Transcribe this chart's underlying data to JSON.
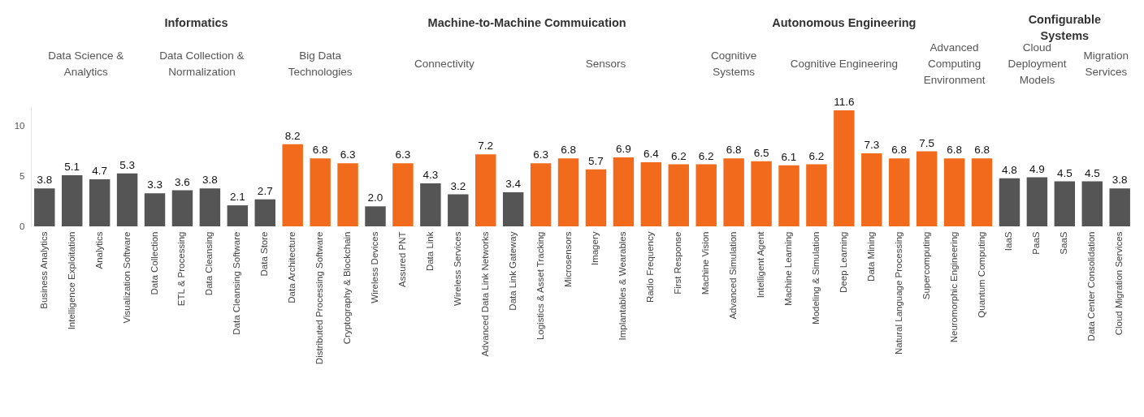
{
  "chart_data": {
    "type": "bar",
    "categories": [
      "Business Analytics",
      "Intelligence Exploitation",
      "Analytics",
      "Visualization Software",
      "Data Collection",
      "ETL & Processing",
      "Data Cleansing",
      "Data Cleansing Software",
      "Data Store",
      "Data Architecture",
      "Distributed Processing Software",
      "Cryptography & Blockchain",
      "Wireless Devices",
      "Assured PNT",
      "Data Link",
      "Wireless Services",
      "Advanced Data Link Networks",
      "Data Link Gateway",
      "Logistics & Asset Tracking",
      "Microsensors",
      "Imagery",
      "Implantables & Wearables",
      "Radio Frequency",
      "First Response",
      "Machine Vision",
      "Advanced Simulation",
      "Intelligent Agent",
      "Machine Learning",
      "Modeling & Simulation",
      "Deep Learning",
      "Data Mining",
      "Natural Language Processing",
      "Supercomputing",
      "Neuromorphic Engineering",
      "Quantum Computing",
      "IaaS",
      "PaaS",
      "SaaS",
      "Data Center Consolidation",
      "Cloud Migration Services"
    ],
    "values": [
      3.8,
      5.1,
      4.7,
      5.3,
      3.3,
      3.6,
      3.8,
      2.1,
      2.7,
      8.2,
      6.8,
      6.3,
      2.0,
      6.3,
      4.3,
      3.2,
      7.2,
      3.4,
      6.3,
      6.8,
      5.7,
      6.9,
      6.4,
      6.2,
      6.2,
      6.8,
      6.5,
      6.1,
      6.2,
      11.6,
      7.3,
      6.8,
      7.5,
      6.8,
      6.8,
      4.8,
      4.9,
      4.5,
      4.5,
      3.8
    ],
    "colors": [
      "#555555",
      "#555555",
      "#555555",
      "#555555",
      "#555555",
      "#555555",
      "#555555",
      "#555555",
      "#555555",
      "#f26b1d",
      "#f26b1d",
      "#f26b1d",
      "#555555",
      "#f26b1d",
      "#555555",
      "#555555",
      "#f26b1d",
      "#555555",
      "#f26b1d",
      "#f26b1d",
      "#f26b1d",
      "#f26b1d",
      "#f26b1d",
      "#f26b1d",
      "#f26b1d",
      "#f26b1d",
      "#f26b1d",
      "#f26b1d",
      "#f26b1d",
      "#f26b1d",
      "#f26b1d",
      "#f26b1d",
      "#f26b1d",
      "#f26b1d",
      "#f26b1d",
      "#555555",
      "#555555",
      "#555555",
      "#555555",
      "#555555"
    ],
    "value_labels": [
      "3.8",
      "5.1",
      "4.7",
      "5.3",
      "3.3",
      "3.6",
      "3.8",
      "2.1",
      "2.7",
      "8.2",
      "6.8",
      "6.3",
      "2.0",
      "6.3",
      "4.3",
      "3.2",
      "7.2",
      "3.4",
      "6.3",
      "6.8",
      "5.7",
      "6.9",
      "6.4",
      "6.2",
      "6.2",
      "6.8",
      "6.5",
      "6.1",
      "6.2",
      "11.6",
      "7.3",
      "6.8",
      "7.5",
      "6.8",
      "6.8",
      "4.8",
      "4.9",
      "4.5",
      "4.5",
      "3.8"
    ],
    "ylim": [
      0,
      12
    ],
    "yticks": [
      0,
      5,
      10
    ],
    "grid": false,
    "annotations": [
      "Informatics",
      "Machine-to-Machine Commuication",
      "Autonomous Engineering",
      "Configurable\nSystems",
      "Data Science &\nAnalytics",
      "Data Collection &\nNormalization",
      "Big Data\nTechnologies",
      "Connectivity",
      "Sensors",
      "Cognitive\nSystems",
      "Cognitive Engineering",
      "Advanced\nComputing\nEnvironment",
      "Cloud\nDeployment\nModels",
      "Migration\nServices"
    ]
  }
}
